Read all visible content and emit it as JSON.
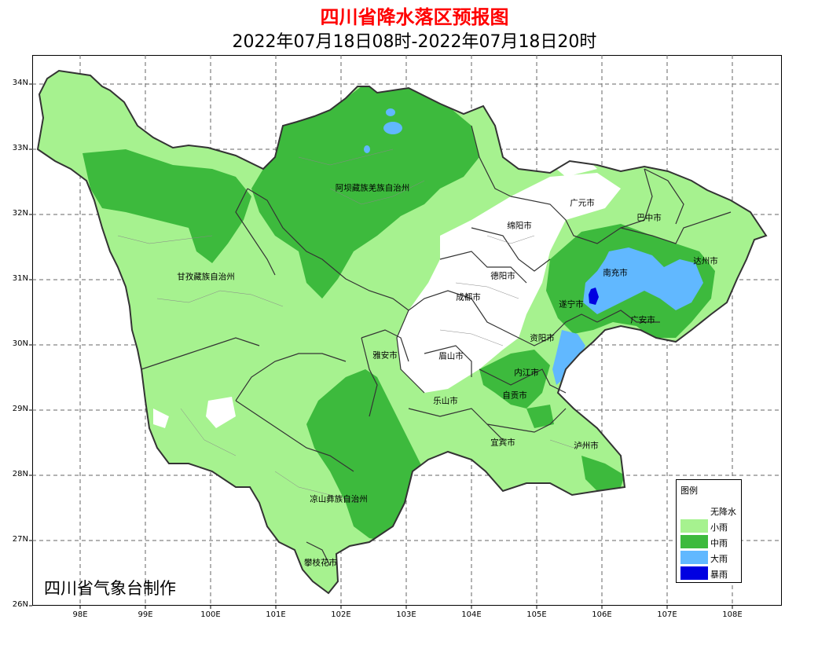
{
  "header": {
    "title": "四川省降水落区预报图",
    "subtitle": "2022年07月18日08时-2022年07月18日20时"
  },
  "axes": {
    "y_ticks": [
      "34N",
      "33N",
      "32N",
      "31N",
      "30N",
      "29N",
      "28N",
      "27N",
      "26N"
    ],
    "x_ticks": [
      "98E",
      "99E",
      "100E",
      "101E",
      "102E",
      "103E",
      "104E",
      "105E",
      "106E",
      "107E",
      "108E"
    ],
    "grid": "dashed"
  },
  "cities": [
    {
      "name": "阿坝藏族羌族自治州"
    },
    {
      "name": "甘孜藏族自治州"
    },
    {
      "name": "广元市"
    },
    {
      "name": "巴中市"
    },
    {
      "name": "绵阳市"
    },
    {
      "name": "达州市"
    },
    {
      "name": "德阳市"
    },
    {
      "name": "南充市"
    },
    {
      "name": "成都市"
    },
    {
      "name": "遂宁市"
    },
    {
      "name": "广安市"
    },
    {
      "name": "资阳市"
    },
    {
      "name": "雅安市"
    },
    {
      "name": "眉山市"
    },
    {
      "name": "内江市"
    },
    {
      "name": "自贡市"
    },
    {
      "name": "乐山市"
    },
    {
      "name": "宜宾市"
    },
    {
      "name": "泸州市"
    },
    {
      "name": "凉山彝族自治州"
    },
    {
      "name": "攀枝花市"
    }
  ],
  "legend": {
    "title": "图例",
    "items": [
      {
        "label": "无降水",
        "color": "#ffffff"
      },
      {
        "label": "小雨",
        "color": "#a6f28f"
      },
      {
        "label": "中雨",
        "color": "#3dba3d"
      },
      {
        "label": "大雨",
        "color": "#61b8ff"
      },
      {
        "label": "暴雨",
        "color": "#0000e1"
      }
    ]
  },
  "credit": "四川省气象台制作"
}
